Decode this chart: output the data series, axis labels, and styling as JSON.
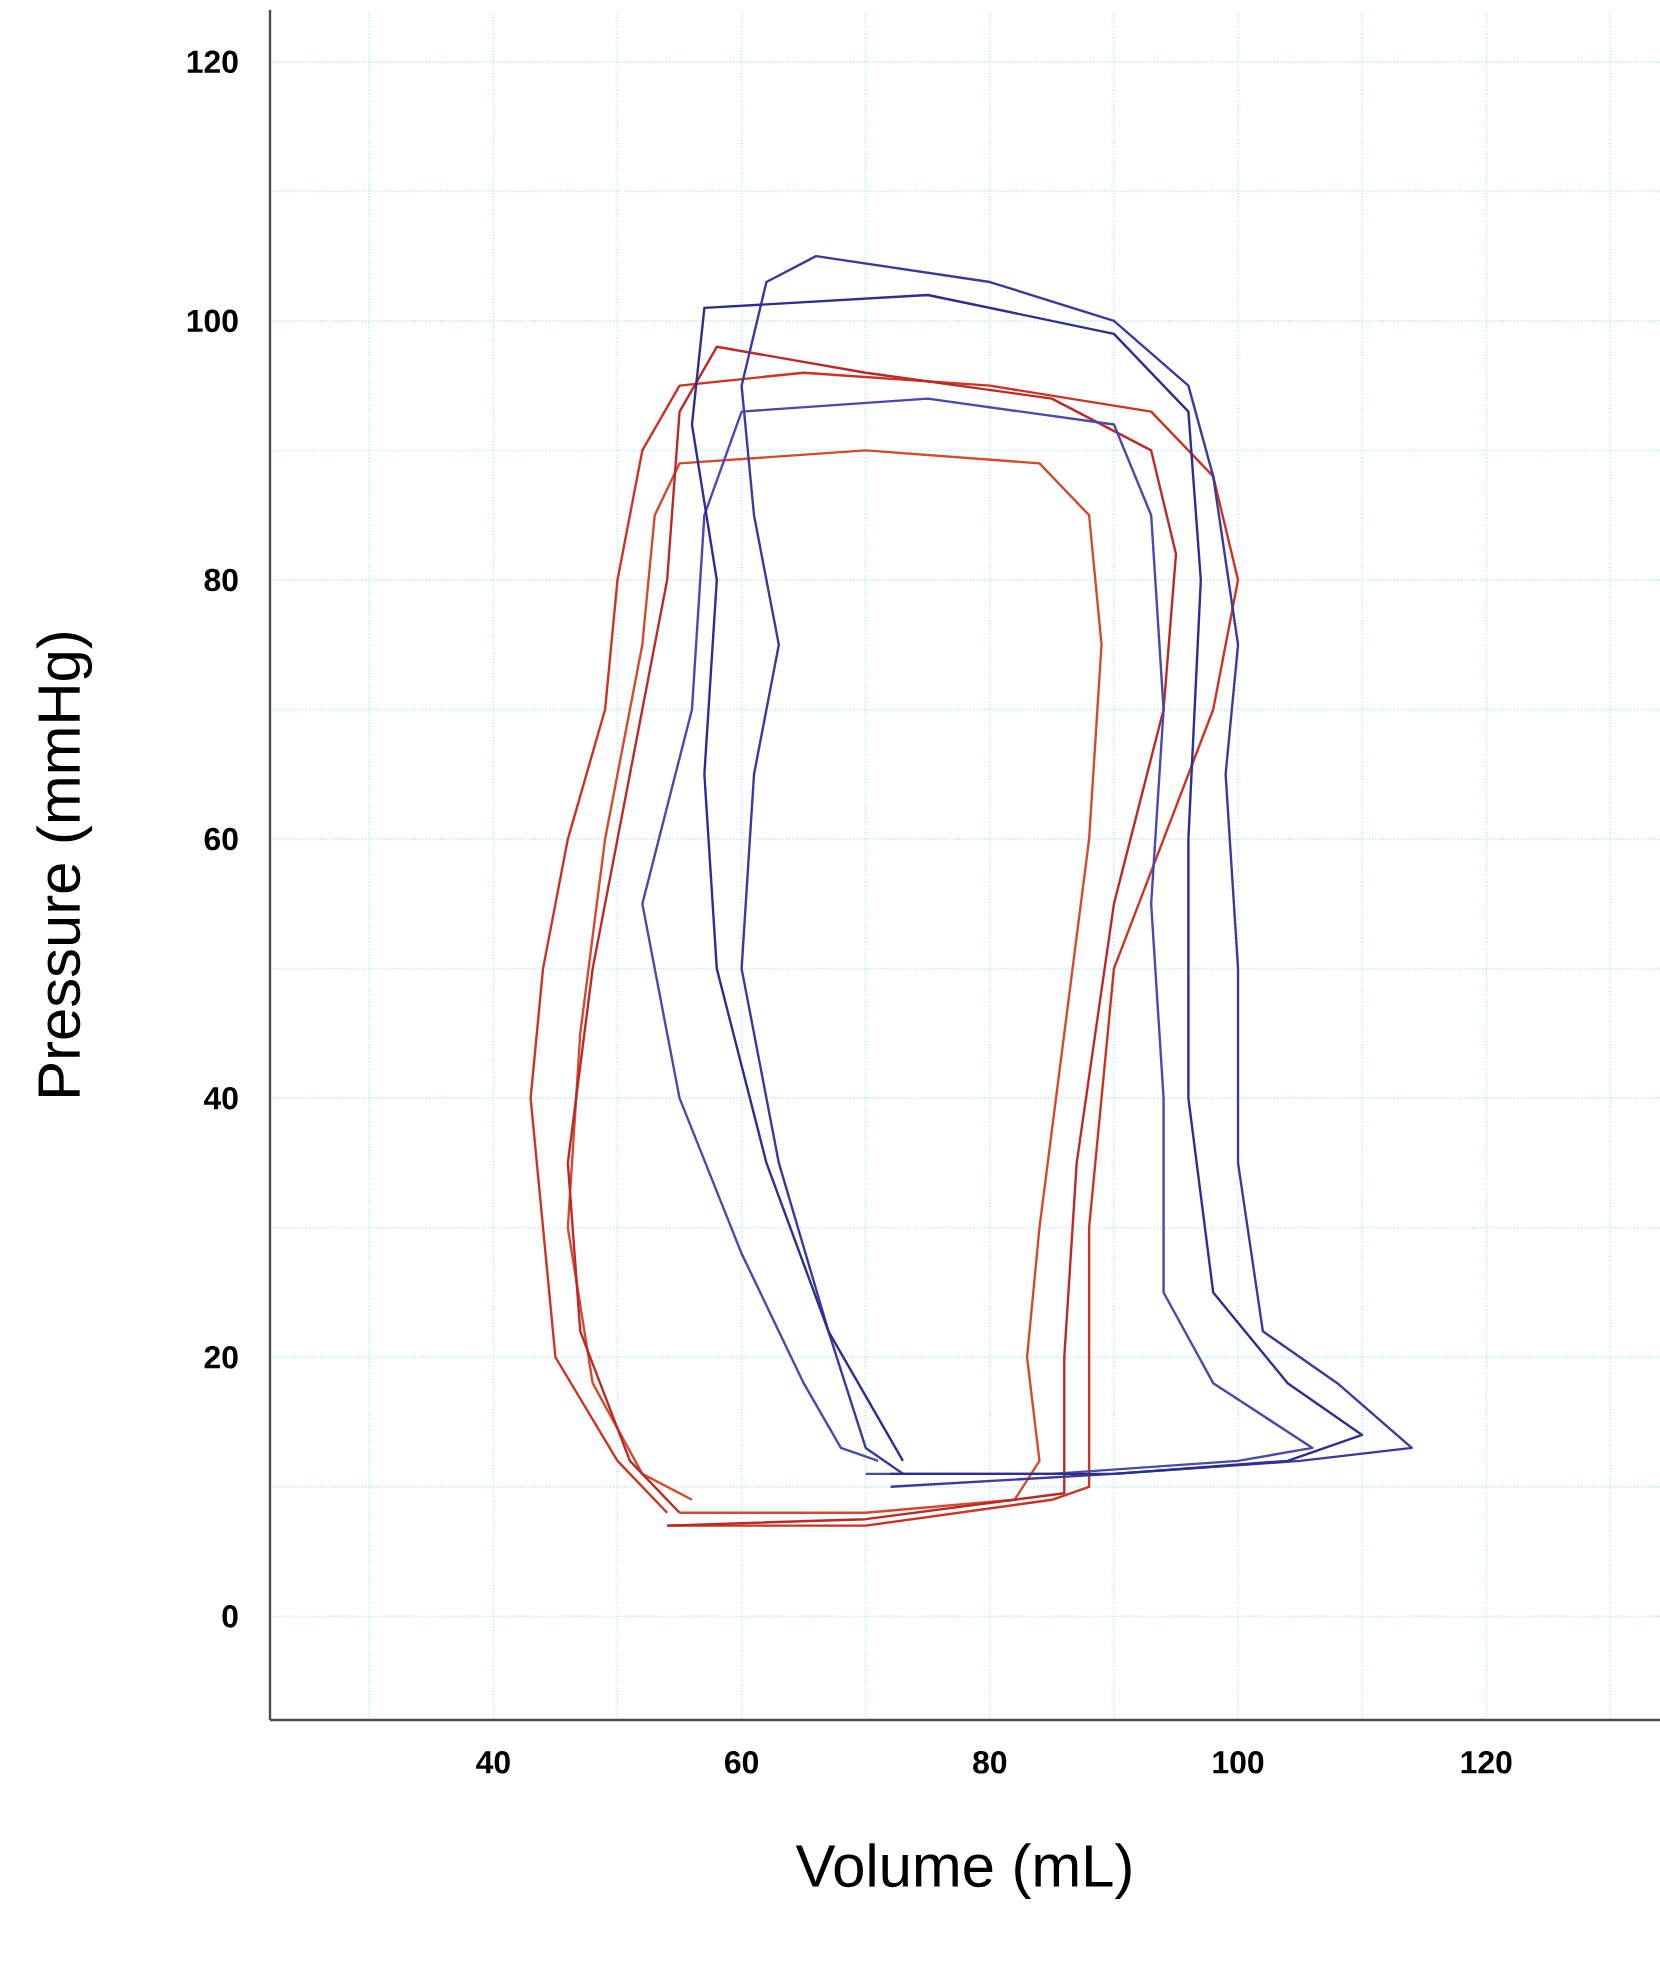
{
  "chart_data": {
    "type": "line",
    "xlabel": "Volume (mL)",
    "ylabel": "Pressure (mmHg)",
    "xlim": [
      22,
      134
    ],
    "ylim": [
      -8,
      124
    ],
    "xticks": [
      {
        "value": 30,
        "label": null
      },
      40,
      {
        "value": 50,
        "label": null
      },
      60,
      {
        "value": 70,
        "label": null
      },
      80,
      {
        "value": 90,
        "label": null
      },
      100,
      {
        "value": 110,
        "label": null
      },
      120,
      {
        "value": 130,
        "label": null
      }
    ],
    "yticks": [
      0,
      {
        "value": 10,
        "label": null
      },
      20,
      {
        "value": 30,
        "label": null
      },
      40,
      {
        "value": 50,
        "label": null
      },
      60,
      {
        "value": 70,
        "label": null
      },
      80,
      {
        "value": 90,
        "label": null
      },
      100,
      {
        "value": 110,
        "label": null
      },
      120
    ],
    "grid": true,
    "marker": "none",
    "line_style": "solid",
    "series": [
      {
        "color": "#cc3322",
        "x": [
          54,
          70,
          85,
          88,
          88,
          90,
          94,
          98,
          100,
          98,
          93,
          80,
          65,
          55,
          52,
          50,
          49,
          46,
          44,
          43,
          44,
          45,
          50,
          54
        ],
        "values": [
          7,
          7,
          9,
          10,
          30,
          50,
          60,
          70,
          80,
          88,
          93,
          95,
          96,
          95,
          90,
          80,
          70,
          60,
          50,
          40,
          30,
          20,
          12,
          8
        ]
      },
      {
        "color": "#d44a2c",
        "x": [
          55,
          70,
          82,
          84,
          83,
          84,
          86,
          88,
          89,
          88,
          84,
          70,
          55,
          53,
          52,
          49,
          47,
          46,
          48,
          52,
          56
        ],
        "values": [
          8,
          8,
          9,
          12,
          20,
          30,
          45,
          60,
          75,
          85,
          89,
          90,
          89,
          85,
          75,
          60,
          45,
          30,
          18,
          11,
          9
        ]
      },
      {
        "color": "#bb2a26",
        "x": [
          54,
          70,
          86,
          86,
          87,
          90,
          94,
          95,
          93,
          85,
          70,
          58,
          55,
          54,
          51,
          48,
          46,
          47,
          51,
          55
        ],
        "values": [
          7,
          7.5,
          9.5,
          20,
          35,
          55,
          70,
          82,
          90,
          94,
          96,
          98,
          93,
          80,
          65,
          50,
          35,
          22,
          12,
          8
        ]
      },
      {
        "color": "#3a3a9e",
        "x": [
          72,
          90,
          105,
          114,
          108,
          102,
          100,
          100,
          99,
          100,
          98,
          96,
          90,
          80,
          66,
          62,
          60,
          61,
          63,
          61,
          60,
          63,
          67,
          70,
          73
        ],
        "values": [
          10,
          11,
          12,
          13,
          18,
          22,
          35,
          50,
          65,
          75,
          88,
          95,
          100,
          103,
          105,
          103,
          95,
          85,
          75,
          65,
          50,
          35,
          22,
          13,
          11
        ]
      },
      {
        "color": "#4a4aaa",
        "x": [
          70,
          85,
          100,
          106,
          98,
          94,
          94,
          93,
          94,
          93,
          90,
          75,
          60,
          57,
          56,
          52,
          55,
          60,
          65,
          68,
          71
        ],
        "values": [
          11,
          11,
          12,
          13,
          18,
          25,
          40,
          55,
          70,
          85,
          92,
          94,
          93,
          85,
          70,
          55,
          40,
          28,
          18,
          13,
          12
        ]
      },
      {
        "color": "#2e2e90",
        "x": [
          72,
          90,
          104,
          110,
          104,
          98,
          96,
          96,
          97,
          96,
          90,
          75,
          57,
          56,
          58,
          57,
          58,
          62,
          67,
          73
        ],
        "values": [
          11,
          11,
          12,
          14,
          18,
          25,
          40,
          60,
          80,
          93,
          99,
          102,
          101,
          92,
          80,
          65,
          50,
          35,
          22,
          12
        ]
      }
    ]
  }
}
